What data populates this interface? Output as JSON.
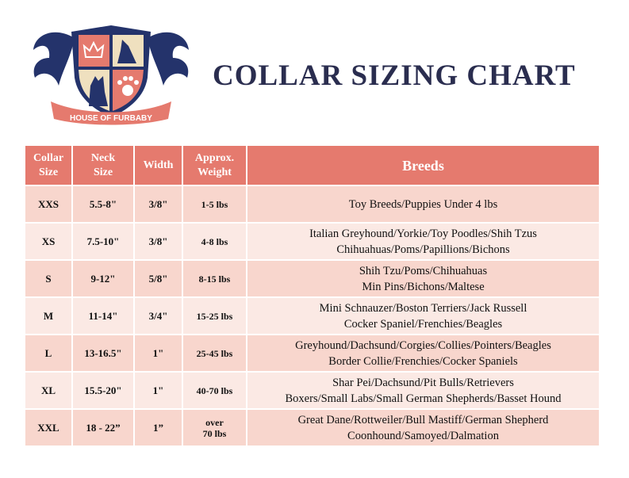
{
  "logo": {
    "text": "HOUSE OF FURBABY"
  },
  "title": "COLLAR SIZING CHART",
  "colors": {
    "header": "#e57a6e",
    "row_dark": "#f8d6cd",
    "row_light": "#fbe9e4",
    "title": "#2a2d4f",
    "navy": "#24336b"
  },
  "table": {
    "headers": [
      "Collar\nSize",
      "Neck\nSize",
      "Width",
      "Approx.\nWeight",
      "Breeds"
    ],
    "rows": [
      {
        "size": "XXS",
        "neck": "5.5-8\"",
        "width": "3/8\"",
        "weight": "1-5 lbs",
        "breeds": [
          "Toy Breeds/Puppies Under 4 lbs"
        ]
      },
      {
        "size": "XS",
        "neck": "7.5-10\"",
        "width": "3/8\"",
        "weight": "4-8 lbs",
        "breeds": [
          "Italian Greyhound/Yorkie/Toy Poodles/Shih Tzus",
          "Chihuahuas/Poms/Papillions/Bichons"
        ]
      },
      {
        "size": "S",
        "neck": "9-12\"",
        "width": "5/8\"",
        "weight": "8-15 lbs",
        "breeds": [
          "Shih Tzu/Poms/Chihuahuas",
          "Min Pins/Bichons/Maltese"
        ]
      },
      {
        "size": "M",
        "neck": "11-14\"",
        "width": "3/4\"",
        "weight": "15-25 lbs",
        "breeds": [
          "Mini Schnauzer/Boston Terriers/Jack Russell",
          "Cocker Spaniel/Frenchies/Beagles"
        ]
      },
      {
        "size": "L",
        "neck": "13-16.5\"",
        "width": "1\"",
        "weight": "25-45 lbs",
        "breeds": [
          "Greyhound/Dachsund/Corgies/Collies/Pointers/Beagles",
          "Border Collie/Frenchies/Cocker Spaniels"
        ]
      },
      {
        "size": "XL",
        "neck": "15.5-20\"",
        "width": "1\"",
        "weight": "40-70 lbs",
        "breeds": [
          "Shar Pei/Dachsund/Pit Bulls/Retrievers",
          "Boxers/Small Labs/Small German Shepherds/Basset Hound"
        ]
      },
      {
        "size": "XXL",
        "neck": "18 - 22”",
        "width": "1”",
        "weight": "over\n70 lbs",
        "breeds": [
          "Great Dane/Rottweiler/Bull Mastiff/German Shepherd",
          "Coonhound/Samoyed/Dalmation"
        ]
      }
    ]
  }
}
